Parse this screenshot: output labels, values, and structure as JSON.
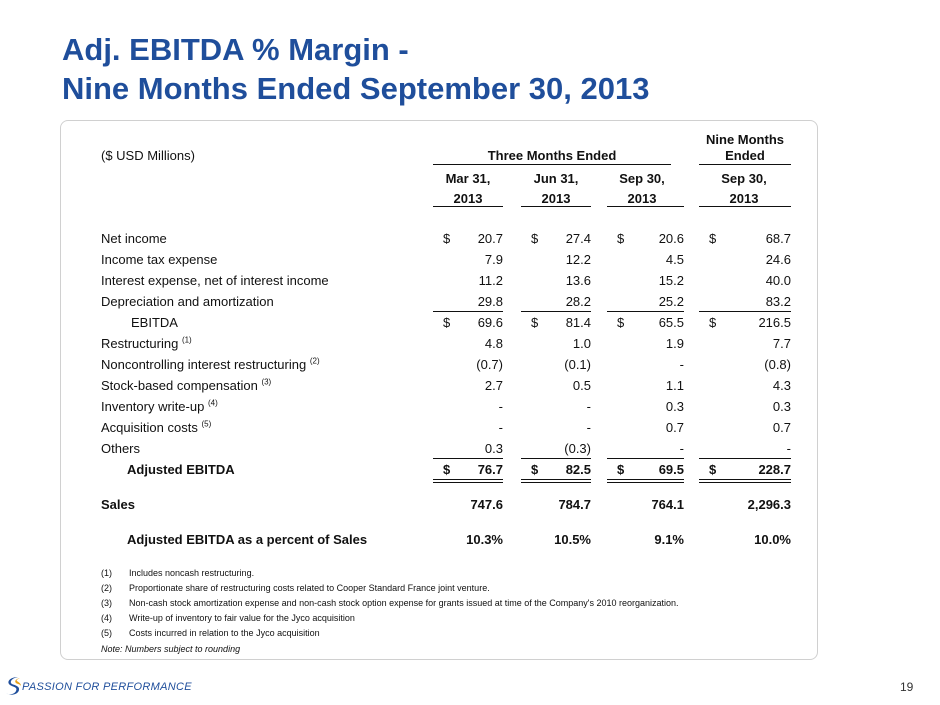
{
  "title": {
    "line1": "Adj. EBITDA % Margin -",
    "line2": "Nine Months Ended September 30, 2013"
  },
  "table": {
    "unit_label": "($ USD Millions)",
    "group_header": "Three Months Ended",
    "nine_header_line1": "Nine Months",
    "nine_header_line2": "Ended",
    "columns": [
      {
        "month": "Mar 31,",
        "year": "2013"
      },
      {
        "month": "Jun 31,",
        "year": "2013"
      },
      {
        "month": "Sep 30,",
        "year": "2013"
      },
      {
        "month": "Sep 30,",
        "year": "2013"
      }
    ],
    "dollar_sign": "$",
    "rows": [
      {
        "label": "Net income",
        "values": [
          "20.7",
          "27.4",
          "20.6",
          "68.7"
        ]
      },
      {
        "label": "Income tax expense",
        "values": [
          "7.9",
          "12.2",
          "4.5",
          "24.6"
        ]
      },
      {
        "label": "Interest expense, net of interest income",
        "values": [
          "11.2",
          "13.6",
          "15.2",
          "40.0"
        ]
      },
      {
        "label": "Depreciation and amortization",
        "values": [
          "29.8",
          "28.2",
          "25.2",
          "83.2"
        ]
      },
      {
        "label": "EBITDA",
        "values": [
          "69.6",
          "81.4",
          "65.5",
          "216.5"
        ]
      },
      {
        "label": "Restructuring",
        "sup": "(1)",
        "values": [
          "4.8",
          "1.0",
          "1.9",
          "7.7"
        ]
      },
      {
        "label": "Noncontrolling interest restructuring",
        "sup": "(2)",
        "values": [
          "(0.7)",
          "(0.1)",
          "-",
          "(0.8)"
        ]
      },
      {
        "label": "Stock-based compensation",
        "sup": "(3)",
        "values": [
          "2.7",
          "0.5",
          "1.1",
          "4.3"
        ]
      },
      {
        "label": "Inventory write-up",
        "sup": "(4)",
        "values": [
          "-",
          "-",
          "0.3",
          "0.3"
        ]
      },
      {
        "label": "Acquisition costs",
        "sup": "(5)",
        "values": [
          "-",
          "-",
          "0.7",
          "0.7"
        ]
      },
      {
        "label": "Others",
        "values": [
          "0.3",
          "(0.3)",
          "-",
          "-"
        ]
      },
      {
        "label": "Adjusted EBITDA",
        "values": [
          "76.7",
          "82.5",
          "69.5",
          "228.7"
        ]
      },
      {
        "label": "Sales",
        "values": [
          "747.6",
          "784.7",
          "764.1",
          "2,296.3"
        ]
      },
      {
        "label": "Adjusted EBITDA as a percent of Sales",
        "values": [
          "10.3%",
          "10.5%",
          "9.1%",
          "10.0%"
        ]
      }
    ]
  },
  "footnotes": [
    {
      "num": "(1)",
      "text": "Includes noncash restructuring."
    },
    {
      "num": "(2)",
      "text": "Proportionate share of restructuring costs related to Cooper Standard France joint venture."
    },
    {
      "num": "(3)",
      "text": "Non-cash stock amortization expense and non-cash stock option expense for grants issued at time of the Company's 2010 reorganization."
    },
    {
      "num": "(4)",
      "text": "Write-up of inventory to fair value for the Jyco acquisition"
    },
    {
      "num": "(5)",
      "text": "Costs incurred in relation to the Jyco acquisition"
    }
  ],
  "note": "Note: Numbers subject to rounding",
  "footer": {
    "tagline": "PASSION FOR PERFORMANCE",
    "page_number": "19",
    "logo_icon": "cooper-standard-logo-icon",
    "brand_color": "#1f4e9b"
  }
}
